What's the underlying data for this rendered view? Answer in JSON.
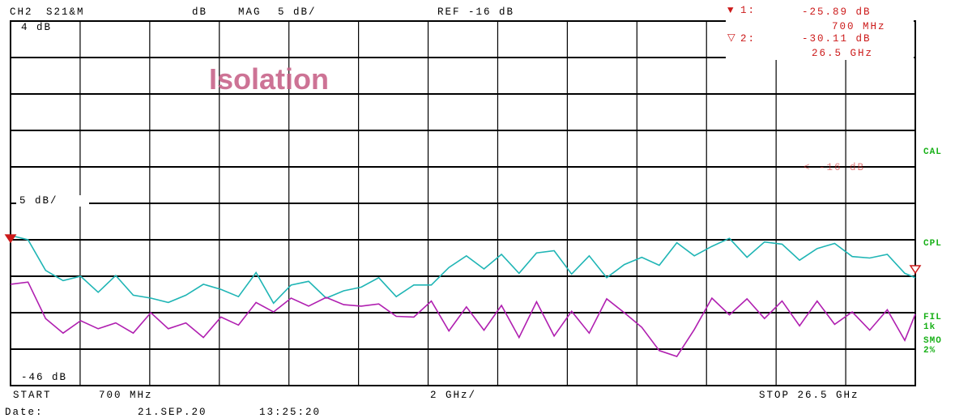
{
  "header": {
    "channel": "CH2",
    "measurement": "S21&M",
    "unit": "dB",
    "format": "MAG",
    "scale": "5 dB/",
    "ref": "REF -16 dB"
  },
  "markers": [
    {
      "id": "1:",
      "value": "-25.89 dB",
      "freq": "700 MHz"
    },
    {
      "id": "2:",
      "value": "-30.11 dB",
      "freq": "26.5 GHz"
    }
  ],
  "annotations": {
    "title": "Isolation",
    "top_left": "4 dB",
    "scale_mark": "5 dB/",
    "bottom_left": "-46 dB",
    "ref_marker": "< -16 dB"
  },
  "side_labels": {
    "cal": "CAL",
    "cpl": "CPL",
    "fil": "FIL",
    "fil_val": "1k",
    "smo": "SMO",
    "smo_val": "2%"
  },
  "footer": {
    "start": "START",
    "start_val": "700 MHz",
    "center": "2 GHz/",
    "stop": "STOP 26.5 GHz",
    "date_label": "Date:",
    "date": "21.SEP.20",
    "time": "13:25:20"
  },
  "colors": {
    "trace_cyan": "#1fb5b5",
    "trace_magenta": "#b01fb0",
    "marker_red": "#cc1a1a",
    "title_pink": "#c8648a",
    "label_green": "#17b017"
  },
  "chart_data": {
    "type": "line",
    "title": "Isolation",
    "xlabel": "",
    "ylabel": "",
    "xlim": [
      0.7,
      26.5
    ],
    "ylim": [
      -46,
      4
    ],
    "grid": true,
    "series": [
      {
        "x": [
          0.7,
          1.2,
          1.7,
          2.2,
          2.7,
          3.2,
          3.7,
          4.2,
          4.7,
          5.2,
          5.7,
          6.2,
          6.7,
          7.2,
          7.7,
          8.2,
          8.7,
          9.2,
          9.7,
          10.2,
          10.7,
          11.2,
          11.7,
          12.2,
          12.7,
          13.2,
          13.7,
          14.2,
          14.7,
          15.2,
          15.7,
          16.2,
          16.7,
          17.2,
          17.7,
          18.2,
          18.7,
          19.2,
          19.7,
          20.2,
          20.7,
          21.2,
          21.7,
          22.2,
          22.7,
          23.2,
          23.7,
          24.2,
          24.7,
          25.2,
          25.7,
          26.2,
          26.5
        ],
        "y": [
          -25.4,
          -26.0,
          -30.2,
          -31.6,
          -31.0,
          -33.2,
          -30.9,
          -33.6,
          -34.0,
          -34.6,
          -33.6,
          -32.1,
          -32.8,
          -33.8,
          -30.5,
          -34.7,
          -32.2,
          -31.7,
          -34.0,
          -33.0,
          -32.5,
          -31.2,
          -33.8,
          -32.2,
          -32.2,
          -29.8,
          -28.2,
          -30.0,
          -28.0,
          -30.6,
          -27.8,
          -27.5,
          -30.7,
          -28.2,
          -31.2,
          -29.4,
          -28.4,
          -29.5,
          -26.4,
          -28.2,
          -26.9,
          -25.8,
          -28.4,
          -26.3,
          -26.6,
          -28.8,
          -27.2,
          -26.5,
          -28.3,
          -28.5,
          -28.0,
          -30.6,
          -31.2
        ]
      },
      {
        "x": [
          0.7,
          1.2,
          1.7,
          2.2,
          2.7,
          3.2,
          3.7,
          4.2,
          4.7,
          5.2,
          5.7,
          6.2,
          6.7,
          7.2,
          7.7,
          8.2,
          8.7,
          9.2,
          9.7,
          10.2,
          10.7,
          11.2,
          11.7,
          12.2,
          12.7,
          13.2,
          13.7,
          14.2,
          14.7,
          15.2,
          15.7,
          16.2,
          16.7,
          17.2,
          17.7,
          18.2,
          18.7,
          19.2,
          19.7,
          20.2,
          20.7,
          21.2,
          21.7,
          22.2,
          22.7,
          23.2,
          23.7,
          24.2,
          24.7,
          25.2,
          25.7,
          26.2,
          26.5
        ],
        "y": [
          -32.1,
          -31.8,
          -36.8,
          -38.8,
          -37.1,
          -38.2,
          -37.4,
          -38.8,
          -36.0,
          -38.2,
          -37.4,
          -39.4,
          -36.6,
          -37.7,
          -34.6,
          -35.9,
          -34.0,
          -35.1,
          -33.9,
          -34.9,
          -35.1,
          -34.8,
          -36.5,
          -36.6,
          -34.4,
          -38.5,
          -35.2,
          -38.4,
          -35.0,
          -39.4,
          -34.5,
          -39.2,
          -35.8,
          -38.8,
          -34.1,
          -36.0,
          -38.0,
          -41.2,
          -42.0,
          -38.3,
          -34.0,
          -36.3,
          -34.1,
          -36.8,
          -34.4,
          -37.8,
          -34.4,
          -37.6,
          -35.9,
          -38.4,
          -35.6,
          -39.8,
          -36.2
        ]
      }
    ],
    "markers": [
      {
        "x": 0.7,
        "y": -25.89
      },
      {
        "x": 26.5,
        "y": -30.11
      }
    ],
    "ref_level": -16
  }
}
